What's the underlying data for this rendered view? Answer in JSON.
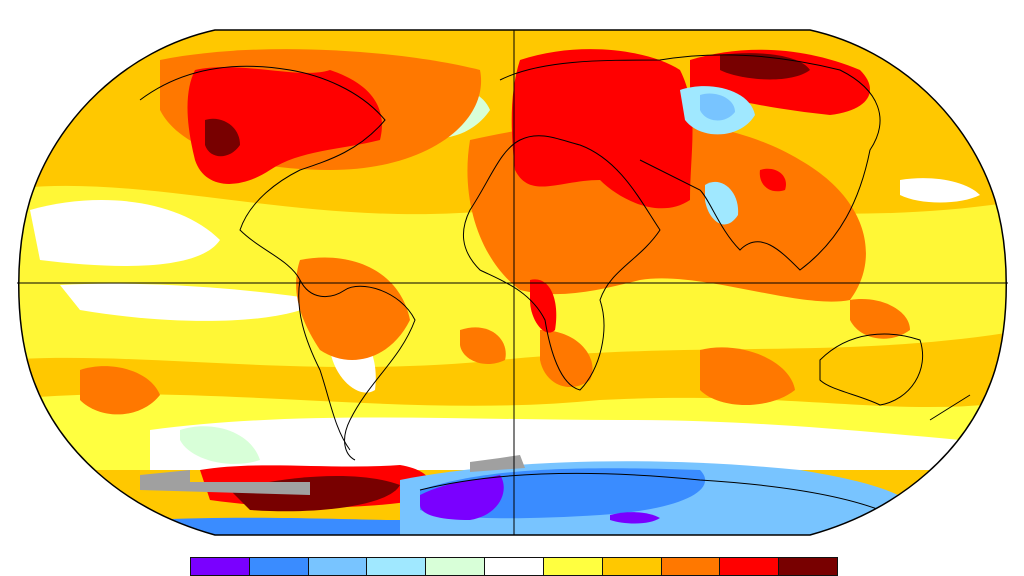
{
  "map": {
    "projection": "robinson",
    "base_color": "#ffc800",
    "missing_data_color": "#a0a0a0",
    "graticule": [
      "equator",
      "prime-meridian"
    ]
  },
  "colorbar": {
    "colors": [
      "#7a00ff",
      "#3a8cff",
      "#78c4ff",
      "#a0e8ff",
      "#d8ffd8",
      "#ffffff",
      "#ffff40",
      "#ffc800",
      "#ff7800",
      "#ff0000",
      "#780000"
    ]
  }
}
